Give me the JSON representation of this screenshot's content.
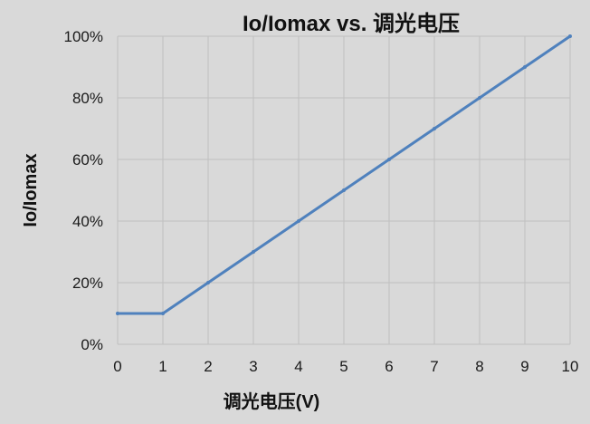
{
  "chart_data": {
    "type": "line",
    "title": "Io/Iomax vs. 调光电压",
    "xlabel": "调光电压(V)",
    "ylabel": "Io/Iomax",
    "x_ticks": [
      "0",
      "1",
      "2",
      "3",
      "4",
      "5",
      "6",
      "7",
      "8",
      "9",
      "10"
    ],
    "y_ticks": [
      "0%",
      "20%",
      "40%",
      "60%",
      "80%",
      "100%"
    ],
    "xlim": [
      0,
      10
    ],
    "ylim": [
      0,
      100
    ],
    "grid": true,
    "series": [
      {
        "x": [
          0,
          1,
          2,
          3,
          4,
          5,
          6,
          7,
          8,
          9,
          10
        ],
        "y": [
          10,
          10,
          20,
          30,
          40,
          50,
          60,
          70,
          80,
          90,
          100
        ],
        "color": "#4f81bd"
      }
    ]
  }
}
